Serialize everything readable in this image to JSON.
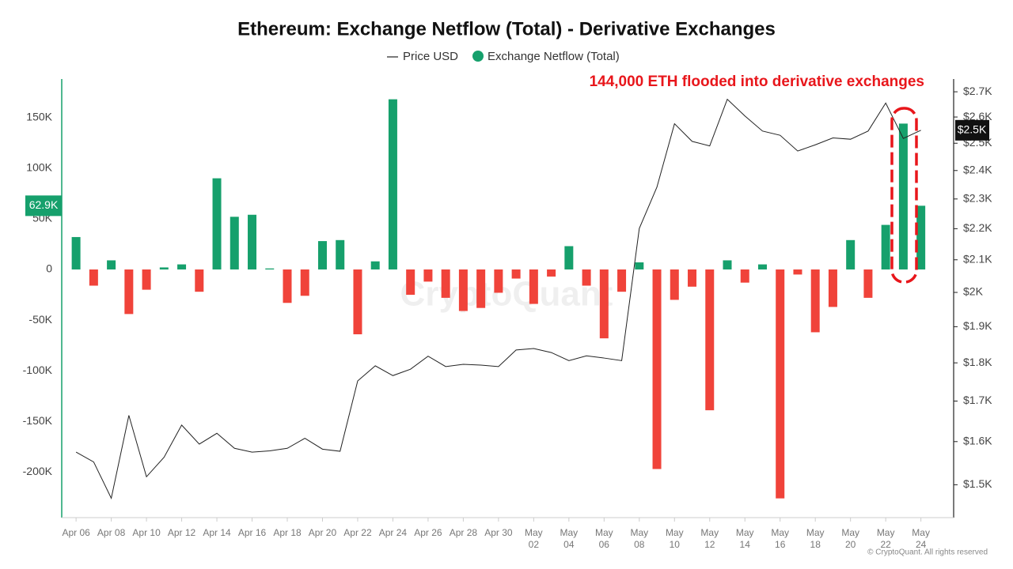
{
  "chart_data": {
    "type": "bar",
    "title": "Ethereum: Exchange Netflow (Total) - Derivative Exchanges",
    "annotation": "144,000 ETH flooded into derivative exchanges",
    "watermark": "CryptoQuant",
    "footer": "© CryptoQuant. All rights reserved",
    "categories": [
      "Apr 06",
      null,
      "Apr 08",
      null,
      "Apr 10",
      null,
      "Apr 12",
      null,
      "Apr 14",
      null,
      "Apr 16",
      null,
      "Apr 18",
      null,
      "Apr 20",
      null,
      "Apr 22",
      null,
      "Apr 24",
      null,
      "Apr 26",
      null,
      "Apr 28",
      null,
      "Apr 30",
      null,
      "May 02",
      null,
      "May 04",
      null,
      "May 06",
      null,
      "May 08",
      null,
      "May 10",
      null,
      "May 12",
      null,
      "May 14",
      null,
      "May 16",
      null,
      "May 18",
      null,
      "May 20",
      null,
      "May 22",
      null,
      "May 24"
    ],
    "series": [
      {
        "name": "Price USD",
        "color": "#222222",
        "axis": "y2",
        "type": "line",
        "values": [
          1575,
          1552,
          1470,
          1664,
          1518,
          1563,
          1640,
          1594,
          1620,
          1584,
          1575,
          1578,
          1584,
          1608,
          1582,
          1577,
          1752,
          1792,
          1766,
          1783,
          1818,
          1790,
          1796,
          1794,
          1790,
          1835,
          1839,
          1828,
          1806,
          1819,
          1813,
          1806,
          2201,
          2341,
          2574,
          2507,
          2490,
          2670,
          2604,
          2546,
          2530,
          2471,
          2494,
          2520,
          2515,
          2546,
          2655,
          2518,
          2549
        ]
      },
      {
        "name": "Exchange Netflow (Total)",
        "color": "#16a06c",
        "negative_color": "#f0433a",
        "type": "bar",
        "values": [
          32000,
          -16000,
          9000,
          -44000,
          -20000,
          2000,
          5000,
          -22000,
          90000,
          52000,
          54000,
          1000,
          -33000,
          -26000,
          28000,
          29000,
          -64000,
          8000,
          168000,
          -25000,
          -12000,
          -28000,
          -41000,
          -38000,
          -23000,
          -9000,
          -34000,
          -7000,
          23000,
          -16000,
          -68000,
          -22000,
          7000,
          -197000,
          -30000,
          -17000,
          -139000,
          9000,
          -13000,
          5000,
          -226000,
          -5000,
          -62000,
          -37000,
          29000,
          -28000,
          44000,
          144000,
          62900
        ]
      }
    ],
    "ylim": [
      -245000,
      188000
    ],
    "yticks": [
      {
        "value": -200000,
        "label": "-200K"
      },
      {
        "value": -150000,
        "label": "-150K"
      },
      {
        "value": -100000,
        "label": "-100K"
      },
      {
        "value": -50000,
        "label": "-50K"
      },
      0,
      {
        "value": 50000,
        "label": "50K"
      },
      {
        "value": 100000,
        "label": "100K"
      },
      {
        "value": 150000,
        "label": "150K"
      }
    ],
    "y2lim": [
      1428,
      2752
    ],
    "y2_log": true,
    "y2ticks": [
      {
        "value": 1500,
        "label": "$1.5K"
      },
      {
        "value": 1600,
        "label": "$1.6K"
      },
      {
        "value": 1700,
        "label": "$1.7K"
      },
      {
        "value": 1800,
        "label": "$1.8K"
      },
      {
        "value": 1900,
        "label": "$1.9K"
      },
      {
        "value": 2000,
        "label": "$2K"
      },
      {
        "value": 2100,
        "label": "$2.1K"
      },
      {
        "value": 2200,
        "label": "$2.2K"
      },
      {
        "value": 2300,
        "label": "$2.3K"
      },
      {
        "value": 2400,
        "label": "$2.4K"
      },
      {
        "value": 2500,
        "label": "$2.5K"
      },
      {
        "value": 2600,
        "label": "$2.6K"
      },
      {
        "value": 2700,
        "label": "$2.7K"
      }
    ],
    "markers": [
      {
        "axis": "y",
        "value": 62900,
        "label": "62.9K"
      },
      {
        "axis": "y2",
        "value": 2549,
        "label": "$2.5K"
      }
    ]
  }
}
